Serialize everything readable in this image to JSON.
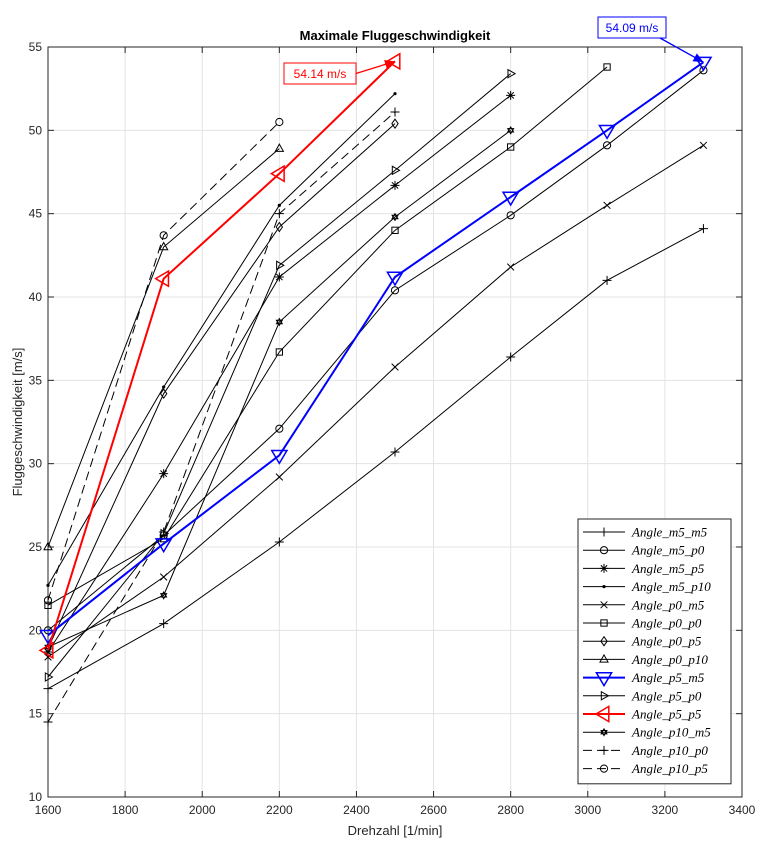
{
  "chart_data": {
    "type": "line",
    "title": "Maximale Fluggeschwindigkeit",
    "xlabel": "Drehzahl [1/min]",
    "ylabel": "Fluggeschwindigkeit [m/s]",
    "xlim": [
      1600,
      3400
    ],
    "ylim": [
      10,
      55
    ],
    "x_ticks": [
      1600,
      1800,
      2000,
      2200,
      2400,
      2600,
      2800,
      3000,
      3200,
      3400
    ],
    "y_ticks": [
      10,
      15,
      20,
      25,
      30,
      35,
      40,
      45,
      50,
      55
    ],
    "grid": true,
    "legend_position": "bottom-right",
    "series": [
      {
        "name": "Angle_m5_m5",
        "marker": "plus",
        "color": "#000000",
        "linestyle": "solid",
        "points": [
          [
            1600,
            16.5
          ],
          [
            1900,
            20.4
          ],
          [
            2200,
            25.3
          ],
          [
            2500,
            30.7
          ],
          [
            2800,
            36.4
          ],
          [
            3050,
            41.0
          ],
          [
            3300,
            44.1
          ]
        ]
      },
      {
        "name": "Angle_m5_p0",
        "marker": "circle",
        "color": "#000000",
        "linestyle": "solid",
        "points": [
          [
            1600,
            20.0
          ],
          [
            1900,
            25.7
          ],
          [
            2200,
            32.1
          ],
          [
            2500,
            40.4
          ],
          [
            2800,
            44.9
          ],
          [
            3050,
            49.1
          ],
          [
            3300,
            53.6
          ]
        ]
      },
      {
        "name": "Angle_m5_p5",
        "marker": "asterisk",
        "color": "#000000",
        "linestyle": "solid",
        "points": [
          [
            1600,
            18.7
          ],
          [
            1900,
            29.4
          ],
          [
            2200,
            41.2
          ],
          [
            2500,
            46.7
          ],
          [
            2800,
            52.1
          ]
        ]
      },
      {
        "name": "Angle_m5_p10",
        "marker": "dot",
        "color": "#000000",
        "linestyle": "solid",
        "points": [
          [
            1600,
            22.7
          ],
          [
            1900,
            34.6
          ],
          [
            2200,
            45.5
          ],
          [
            2500,
            52.2
          ]
        ]
      },
      {
        "name": "Angle_p0_m5",
        "marker": "x",
        "color": "#000000",
        "linestyle": "solid",
        "points": [
          [
            1600,
            18.4
          ],
          [
            1900,
            23.2
          ],
          [
            2200,
            29.2
          ],
          [
            2500,
            35.8
          ],
          [
            2800,
            41.8
          ],
          [
            3050,
            45.5
          ],
          [
            3300,
            49.1
          ]
        ]
      },
      {
        "name": "Angle_p0_p0",
        "marker": "square",
        "color": "#000000",
        "linestyle": "solid",
        "points": [
          [
            1600,
            21.5
          ],
          [
            1900,
            25.5
          ],
          [
            2200,
            36.7
          ],
          [
            2500,
            44.0
          ],
          [
            2800,
            49.0
          ],
          [
            3050,
            53.8
          ]
        ]
      },
      {
        "name": "Angle_p0_p5",
        "marker": "diamond",
        "color": "#000000",
        "linestyle": "solid",
        "points": [
          [
            1600,
            18.9
          ],
          [
            1900,
            34.2
          ],
          [
            2200,
            44.2
          ],
          [
            2500,
            50.4
          ]
        ]
      },
      {
        "name": "Angle_p0_p10",
        "marker": "triangle-up",
        "color": "#000000",
        "linestyle": "solid",
        "points": [
          [
            1600,
            25.0
          ],
          [
            1900,
            43.0
          ],
          [
            2200,
            48.9
          ]
        ]
      },
      {
        "name": "Angle_p5_m5",
        "marker": "triangle-down",
        "color": "#0000ff",
        "linestyle": "solid",
        "bold": true,
        "points": [
          [
            1600,
            19.7
          ],
          [
            1900,
            25.2
          ],
          [
            2200,
            30.5
          ],
          [
            2500,
            41.2
          ],
          [
            2800,
            46.0
          ],
          [
            3050,
            50.0
          ],
          [
            3300,
            54.09
          ]
        ]
      },
      {
        "name": "Angle_p5_p0",
        "marker": "triangle-right",
        "color": "#000000",
        "linestyle": "solid",
        "points": [
          [
            1600,
            17.2
          ],
          [
            1900,
            25.8
          ],
          [
            2200,
            41.9
          ],
          [
            2500,
            47.6
          ],
          [
            2800,
            53.4
          ]
        ]
      },
      {
        "name": "Angle_p5_p5",
        "marker": "triangle-left",
        "color": "#ff0000",
        "linestyle": "solid",
        "bold": true,
        "points": [
          [
            1600,
            18.8
          ],
          [
            1900,
            41.1
          ],
          [
            2200,
            47.4
          ],
          [
            2500,
            54.14
          ]
        ]
      },
      {
        "name": "Angle_p10_m5",
        "marker": "hexagram",
        "color": "#000000",
        "linestyle": "solid",
        "points": [
          [
            1600,
            19.0
          ],
          [
            1900,
            22.1
          ],
          [
            2200,
            38.5
          ],
          [
            2500,
            44.8
          ],
          [
            2800,
            50.0
          ]
        ]
      },
      {
        "name": "Angle_p10_p0",
        "marker": "plus",
        "color": "#000000",
        "linestyle": "dashed",
        "points": [
          [
            1600,
            14.5
          ],
          [
            1900,
            25.9
          ],
          [
            2200,
            45.0
          ],
          [
            2500,
            51.1
          ]
        ]
      },
      {
        "name": "Angle_p10_p5",
        "marker": "circle",
        "color": "#000000",
        "linestyle": "dashed",
        "points": [
          [
            1600,
            21.8
          ],
          [
            1900,
            43.7
          ],
          [
            2200,
            50.5
          ]
        ]
      }
    ],
    "annotations": [
      {
        "text": "54.14 m/s",
        "color": "#ff0000",
        "target": [
          2500,
          54.14
        ]
      },
      {
        "text": "54.09 m/s",
        "color": "#0000ff",
        "target": [
          3300,
          54.09
        ]
      }
    ]
  }
}
